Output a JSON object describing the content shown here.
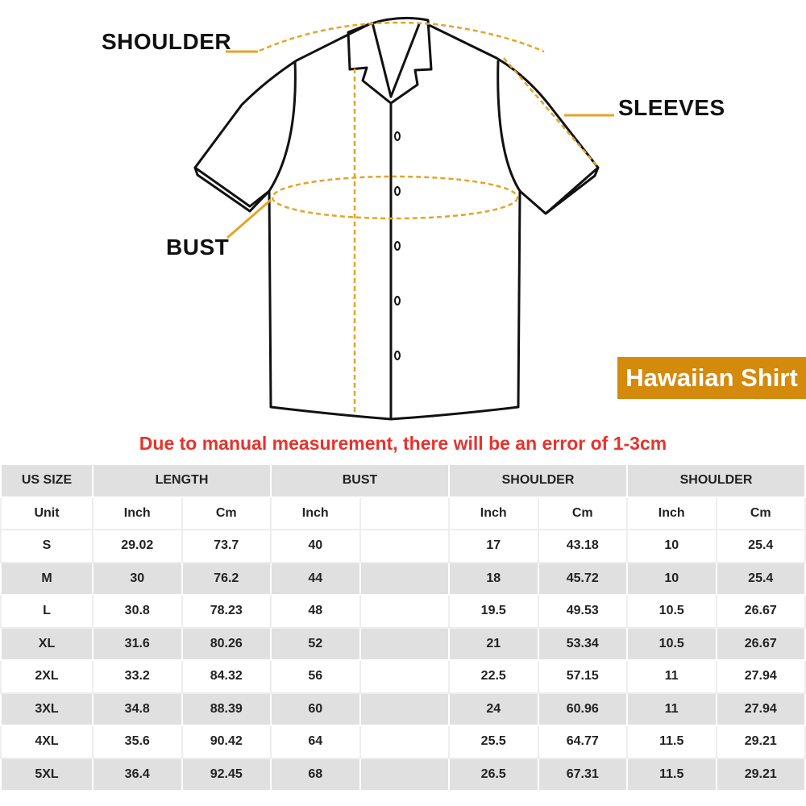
{
  "labels": {
    "shoulder": "SHOULDER",
    "sleeves": "SLEEVES",
    "bust": "BUST"
  },
  "badge": "Hawaiian Shirt",
  "notice": "Due to manual measurement, there will be an error of 1-3cm",
  "colors": {
    "accent": "#d38a0d",
    "notice": "#e8322b",
    "row_gray": "#e0e0e0"
  },
  "table": {
    "headers": [
      "US SIZE",
      "LENGTH",
      "BUST",
      "SHOULDER",
      "SHOULDER"
    ],
    "units": [
      "Unit",
      "Inch",
      "Cm",
      "Inch",
      "",
      "Inch",
      "Cm",
      "Inch",
      "Cm"
    ],
    "rows": [
      [
        "S",
        "29.02",
        "73.7",
        "40",
        "",
        "17",
        "43.18",
        "10",
        "25.4"
      ],
      [
        "M",
        "30",
        "76.2",
        "44",
        "",
        "18",
        "45.72",
        "10",
        "25.4"
      ],
      [
        "L",
        "30.8",
        "78.23",
        "48",
        "",
        "19.5",
        "49.53",
        "10.5",
        "26.67"
      ],
      [
        "XL",
        "31.6",
        "80.26",
        "52",
        "",
        "21",
        "53.34",
        "10.5",
        "26.67"
      ],
      [
        "2XL",
        "33.2",
        "84.32",
        "56",
        "",
        "22.5",
        "57.15",
        "11",
        "27.94"
      ],
      [
        "3XL",
        "34.8",
        "88.39",
        "60",
        "",
        "24",
        "60.96",
        "11",
        "27.94"
      ],
      [
        "4XL",
        "35.6",
        "90.42",
        "64",
        "",
        "25.5",
        "64.77",
        "11.5",
        "29.21"
      ],
      [
        "5XL",
        "36.4",
        "92.45",
        "68",
        "",
        "26.5",
        "67.31",
        "11.5",
        "29.21"
      ]
    ]
  }
}
